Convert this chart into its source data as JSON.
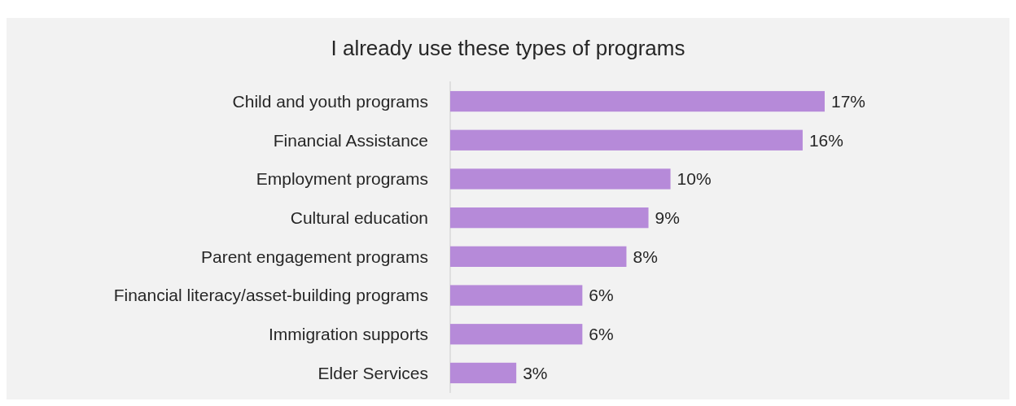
{
  "chart_data": {
    "type": "bar",
    "orientation": "horizontal",
    "title": "I already use these types of programs",
    "categories": [
      "Child and youth programs",
      "Financial Assistance",
      "Employment programs",
      "Cultural education",
      "Parent engagement programs",
      "Financial literacy/asset-building programs",
      "Immigration supports",
      "Elder Services"
    ],
    "values": [
      17,
      16,
      10,
      9,
      8,
      6,
      6,
      3
    ],
    "value_labels": [
      "17%",
      "16%",
      "10%",
      "9%",
      "8%",
      "6%",
      "6%",
      "3%"
    ],
    "color": "#b68ad9"
  }
}
